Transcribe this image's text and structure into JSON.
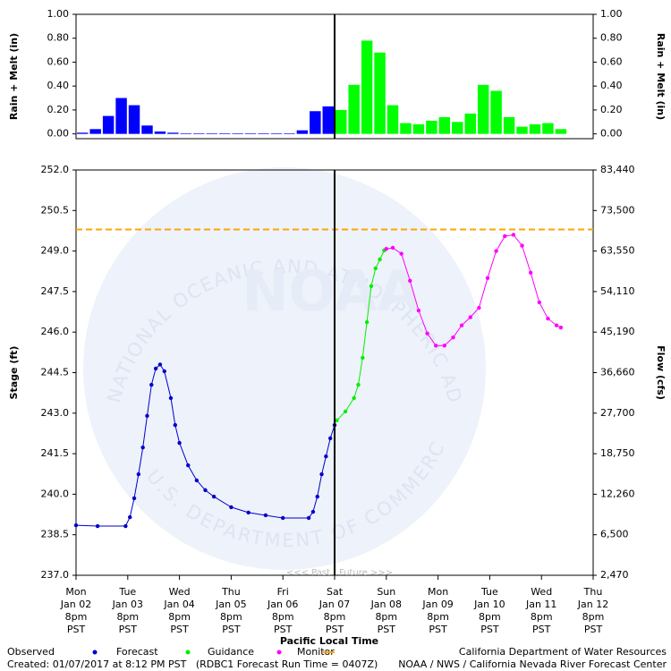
{
  "chart_data": [
    {
      "type": "bar",
      "ylabel": "Rain + Melt (in)",
      "y2label": "Rain + Melt (in)",
      "xlim": [
        "Jan 02 8pm",
        "Jan 12 8pm"
      ],
      "ylim": [
        -0.04,
        1
      ],
      "yticks": [
        {
          "value": 0,
          "label": "0.00"
        },
        {
          "value": 0.2,
          "label": "0.20"
        },
        {
          "value": 0.4,
          "label": "0.40"
        },
        {
          "value": 0.6,
          "label": "0.60"
        },
        {
          "value": 0.8,
          "label": "0.80"
        },
        {
          "value": 1,
          "label": "1.00"
        }
      ],
      "series": [
        {
          "color": "#0000ff",
          "x": [
            "Jan 02 8pm",
            "Jan 03 2am",
            "Jan 03 8am",
            "Jan 03 2pm",
            "Jan 03 8pm",
            "Jan 04 2am",
            "Jan 04 8am",
            "Jan 04 2pm",
            "Jan 04 8pm",
            "Jan 05 2am",
            "Jan 05 8am",
            "Jan 05 2pm",
            "Jan 05 8pm",
            "Jan 06 2am",
            "Jan 06 8am",
            "Jan 06 2pm",
            "Jan 06 8pm",
            "Jan 07 2am",
            "Jan 07 8am",
            "Jan 07 2pm"
          ],
          "values": [
            0.01,
            0.04,
            0.15,
            0.3,
            0.24,
            0.07,
            0.02,
            0.01,
            0.005,
            0.005,
            0.005,
            0.005,
            0.005,
            0.005,
            0.005,
            0.005,
            0.005,
            0.03,
            0.19,
            0.23
          ]
        },
        {
          "color": "#00ff00",
          "x": [
            "Jan 07 8pm",
            "Jan 08 2am",
            "Jan 08 8am",
            "Jan 08 2pm",
            "Jan 08 8pm",
            "Jan 09 2am",
            "Jan 09 8am",
            "Jan 09 2pm",
            "Jan 09 8pm",
            "Jan 10 2am",
            "Jan 10 8am",
            "Jan 10 2pm",
            "Jan 10 8pm",
            "Jan 11 2am",
            "Jan 11 8am",
            "Jan 11 2pm",
            "Jan 11 8pm",
            "Jan 12 2am"
          ],
          "values": [
            0.2,
            0.41,
            0.78,
            0.68,
            0.24,
            0.09,
            0.08,
            0.11,
            0.14,
            0.1,
            0.17,
            0.41,
            0.36,
            0.14,
            0.06,
            0.08,
            0.09,
            0.04
          ]
        }
      ]
    },
    {
      "type": "line",
      "xlabel": "Pacific Local Time",
      "ylabel": "Stage (ft)",
      "y2label": "Flow (cfs)",
      "xlim": [
        "Jan 02 8pm",
        "Jan 12 8pm"
      ],
      "xticks": [
        {
          "value": "Jan 02 8pm",
          "label": [
            "Mon",
            "Jan 02",
            "8pm",
            "PST"
          ]
        },
        {
          "value": "Jan 03 8pm",
          "label": [
            "Tue",
            "Jan 03",
            "8pm",
            "PST"
          ]
        },
        {
          "value": "Jan 04 8pm",
          "label": [
            "Wed",
            "Jan 04",
            "8pm",
            "PST"
          ]
        },
        {
          "value": "Jan 05 8pm",
          "label": [
            "Thu",
            "Jan 05",
            "8pm",
            "PST"
          ]
        },
        {
          "value": "Jan 06 8pm",
          "label": [
            "Fri",
            "Jan 06",
            "8pm",
            "PST"
          ]
        },
        {
          "value": "Jan 07 8pm",
          "label": [
            "Sat",
            "Jan 07",
            "8pm",
            "PST"
          ]
        },
        {
          "value": "Jan 08 8pm",
          "label": [
            "Sun",
            "Jan 08",
            "8pm",
            "PST"
          ]
        },
        {
          "value": "Jan 09 8pm",
          "label": [
            "Mon",
            "Jan 09",
            "8pm",
            "PST"
          ]
        },
        {
          "value": "Jan 10 8pm",
          "label": [
            "Tue",
            "Jan 10",
            "8pm",
            "PST"
          ]
        },
        {
          "value": "Jan 11 8pm",
          "label": [
            "Wed",
            "Jan 11",
            "8pm",
            "PST"
          ]
        },
        {
          "value": "Jan 12 8pm",
          "label": [
            "Thu",
            "Jan 12",
            "8pm",
            "PST"
          ]
        }
      ],
      "ylim": [
        237,
        252
      ],
      "yticks": [
        {
          "value": 237,
          "label": "237.0"
        },
        {
          "value": 238.5,
          "label": "238.5"
        },
        {
          "value": 240,
          "label": "240.0"
        },
        {
          "value": 241.5,
          "label": "241.5"
        },
        {
          "value": 243,
          "label": "243.0"
        },
        {
          "value": 244.5,
          "label": "244.5"
        },
        {
          "value": 246,
          "label": "246.0"
        },
        {
          "value": 247.5,
          "label": "247.5"
        },
        {
          "value": 249,
          "label": "249.0"
        },
        {
          "value": 250.5,
          "label": "250.5"
        },
        {
          "value": 252,
          "label": "252.0"
        }
      ],
      "y2ticks": [
        {
          "value": 2470,
          "label": "2,470"
        },
        {
          "value": 6500,
          "label": "6,500"
        },
        {
          "value": 12260,
          "label": "12,260"
        },
        {
          "value": 18750,
          "label": "18,750"
        },
        {
          "value": 27700,
          "label": "27,700"
        },
        {
          "value": 36660,
          "label": "36,660"
        },
        {
          "value": 45190,
          "label": "45,190"
        },
        {
          "value": 54110,
          "label": "54,110"
        },
        {
          "value": 63550,
          "label": "63,550"
        },
        {
          "value": 73500,
          "label": "73,500"
        },
        {
          "value": 83440,
          "label": "83,440"
        }
      ],
      "now": "Jan 07 8pm",
      "past_label": "<<< Past",
      "future_label": "Future >>>",
      "threshold": {
        "name": "Monitor",
        "color": "#ffa500",
        "value": 249.8
      },
      "series": [
        {
          "name": "Observed",
          "color": "#0000cc",
          "x": [
            "Jan 02 8pm",
            "Jan 03 6am",
            "Jan 03 7pm",
            "Jan 03 9pm",
            "Jan 03 11pm",
            "Jan 04 1am",
            "Jan 04 3am",
            "Jan 04 5am",
            "Jan 04 7am",
            "Jan 04 9am",
            "Jan 04 11am",
            "Jan 04 1pm",
            "Jan 04 4pm",
            "Jan 04 6pm",
            "Jan 04 8pm",
            "Jan 05 12am",
            "Jan 05 4am",
            "Jan 05 8am",
            "Jan 05 12pm",
            "Jan 05 8pm",
            "Jan 06 4am",
            "Jan 06 12pm",
            "Jan 06 8pm",
            "Jan 07 8am",
            "Jan 07 10am",
            "Jan 07 12pm",
            "Jan 07 2pm",
            "Jan 07 4pm",
            "Jan 07 6pm",
            "Jan 07 8pm"
          ],
          "values": [
            238.85,
            238.82,
            238.82,
            239.15,
            239.85,
            240.74,
            241.73,
            242.9,
            244.05,
            244.65,
            244.8,
            244.55,
            243.56,
            242.56,
            241.9,
            241.07,
            240.51,
            240.15,
            239.91,
            239.52,
            239.32,
            239.22,
            239.12,
            239.12,
            239.35,
            239.91,
            240.74,
            241.4,
            242.07,
            242.56
          ]
        },
        {
          "name": "Forecast",
          "color": "#00ee00",
          "x": [
            "Jan 07 9pm",
            "Jan 08 1am",
            "Jan 08 5am",
            "Jan 08 7am",
            "Jan 08 9am",
            "Jan 08 11am",
            "Jan 08 1pm",
            "Jan 08 3pm",
            "Jan 08 5pm",
            "Jan 08 7pm"
          ],
          "values": [
            242.73,
            243.06,
            243.56,
            244.05,
            245.05,
            246.37,
            247.7,
            248.36,
            248.69,
            249.02
          ]
        },
        {
          "name": "Guidance",
          "color": "#ff00ff",
          "x": [
            "Jan 08 8pm",
            "Jan 08 11pm",
            "Jan 09 3am",
            "Jan 09 7am",
            "Jan 09 11am",
            "Jan 09 3pm",
            "Jan 09 7pm",
            "Jan 09 11pm",
            "Jan 10 3am",
            "Jan 10 7am",
            "Jan 10 11am",
            "Jan 10 3pm",
            "Jan 10 7pm",
            "Jan 10 11pm",
            "Jan 11 3am",
            "Jan 11 7am",
            "Jan 11 11am",
            "Jan 11 3pm",
            "Jan 11 7pm",
            "Jan 11 11pm",
            "Jan 12 3am",
            "Jan 12 5am"
          ],
          "values": [
            249.08,
            249.12,
            248.9,
            247.9,
            246.8,
            245.95,
            245.5,
            245.5,
            245.8,
            246.25,
            246.55,
            246.9,
            248.0,
            249.0,
            249.55,
            249.6,
            249.2,
            248.2,
            247.1,
            246.5,
            246.25,
            246.17
          ]
        }
      ]
    }
  ],
  "watermark": {
    "logo": "NOAA",
    "top_ring": "NATIONAL OCEANIC AND ATMOSPHERIC ADMINISTRATION",
    "bottom_ring": "U.S. DEPARTMENT OF COMMERCE"
  },
  "footer": {
    "created": "Created: 01/07/2017 at 8:12 PM PST   (RDBC1 Forecast Run Time = 0407Z)",
    "agency": "California Department of Water Resources",
    "center": "NOAA / NWS / California Nevada River Forecast Center"
  }
}
